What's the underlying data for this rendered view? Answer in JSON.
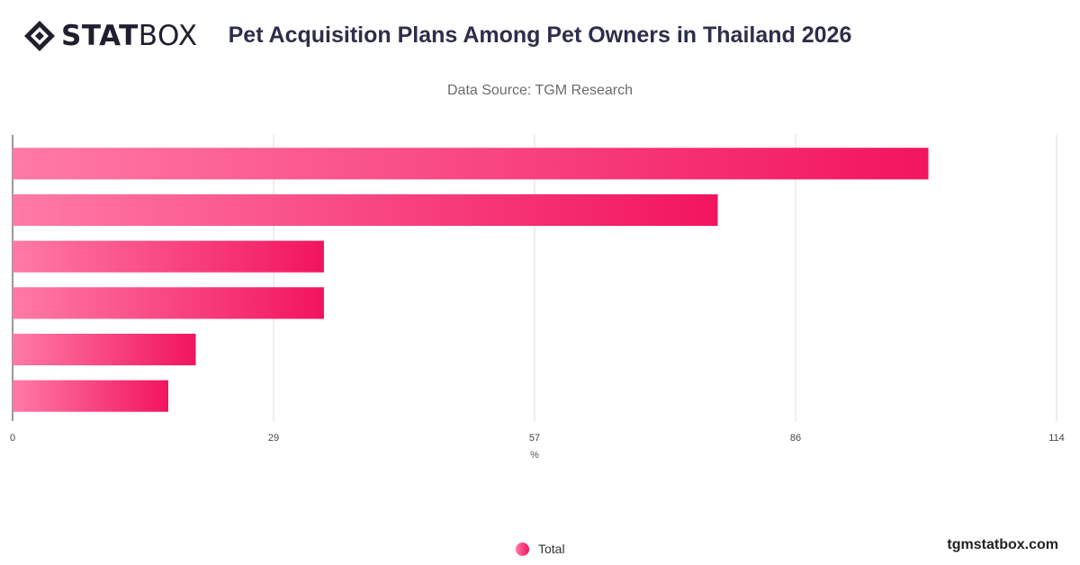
{
  "brand": {
    "logo_bold": "STAT",
    "logo_light": "BOX",
    "footer": "tgmstatbox.com"
  },
  "colors": {
    "bar_start": "#ff7aa6",
    "bar_end": "#f2145f",
    "grid": "#dddddd",
    "title": "#2d2e4a"
  },
  "chart_data": {
    "type": "bar",
    "orientation": "horizontal",
    "title": "Pet Acquisition Plans Among Pet Owners in Thailand 2026",
    "subtitle": "Data Source: TGM Research",
    "xlabel": "%",
    "ylabel": "",
    "xlim": [
      0,
      114
    ],
    "ticks": [
      "0",
      "29",
      "57",
      "86",
      "114"
    ],
    "tick_values": [
      0,
      28.5,
      57,
      85.5,
      114
    ],
    "grid": true,
    "legend_position": "bottom",
    "categories": [
      "",
      "",
      "",
      "",
      "",
      ""
    ],
    "series": [
      {
        "name": "Total",
        "values": [
          100,
          77,
          34,
          34,
          20,
          17
        ]
      }
    ]
  }
}
